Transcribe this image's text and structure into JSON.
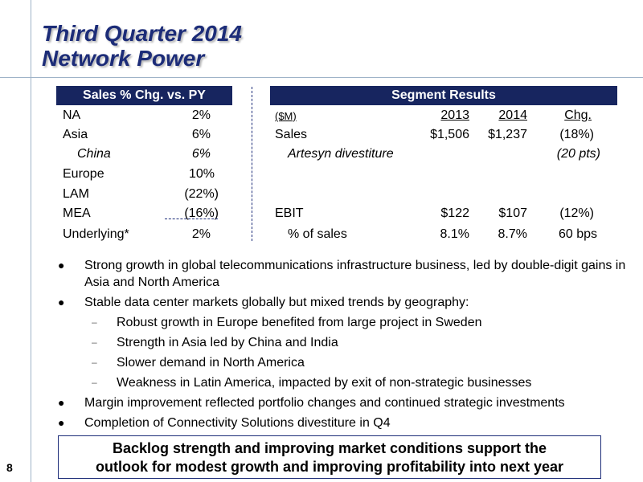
{
  "title": {
    "line1": "Third Quarter 2014",
    "line2": "Network Power"
  },
  "sales_table": {
    "header": "Sales % Chg. vs. PY",
    "rows": [
      {
        "label": "NA",
        "value": "2%"
      },
      {
        "label": "Asia",
        "value": "6%"
      },
      {
        "label": "China",
        "value": "6%"
      },
      {
        "label": "Europe",
        "value": "10%"
      },
      {
        "label": "LAM",
        "value": "(22%)"
      },
      {
        "label": "MEA",
        "value": "(16%)"
      },
      {
        "label": "Underlying*",
        "value": "2%"
      }
    ]
  },
  "segment": {
    "header": "Segment Results",
    "col_unit": "($M)",
    "col_2013": "2013",
    "col_2014": "2014",
    "col_chg": "Chg.",
    "rows": [
      {
        "label": "Sales",
        "v2013": "$1,506",
        "v2014": "$1,237",
        "chg": "(18%)"
      },
      {
        "label": "Artesyn divestiture",
        "v2013": "",
        "v2014": "",
        "chg": "(20 pts)"
      },
      {
        "label": "EBIT",
        "v2013": "$122",
        "v2014": "$107",
        "chg": "(12%)"
      },
      {
        "label": "% of sales",
        "v2013": "8.1%",
        "v2014": "8.7%",
        "chg": "60 bps"
      }
    ]
  },
  "bullets": {
    "b1": "Strong growth in global telecommunications infrastructure business, led by double-digit gains in Asia and North America",
    "b2": "Stable data center markets globally but mixed trends by geography:",
    "s1": "Robust growth in Europe benefited from large project in Sweden",
    "s2": "Strength in Asia led by China and India",
    "s3": "Slower demand in North America",
    "s4": "Weakness in Latin America, impacted by exit of non-strategic businesses",
    "b3": "Margin improvement reflected portfolio changes and continued strategic investments",
    "b4": "Completion of Connectivity Solutions divestiture in Q4"
  },
  "callout": {
    "line1": "Backlog strength and improving market conditions support the",
    "line2": "outlook for modest growth and improving profitability into next year"
  },
  "page_number": "8",
  "colors": {
    "navy": "#17255f",
    "title": "#1c2c78",
    "rule": "#9fb3c8"
  }
}
